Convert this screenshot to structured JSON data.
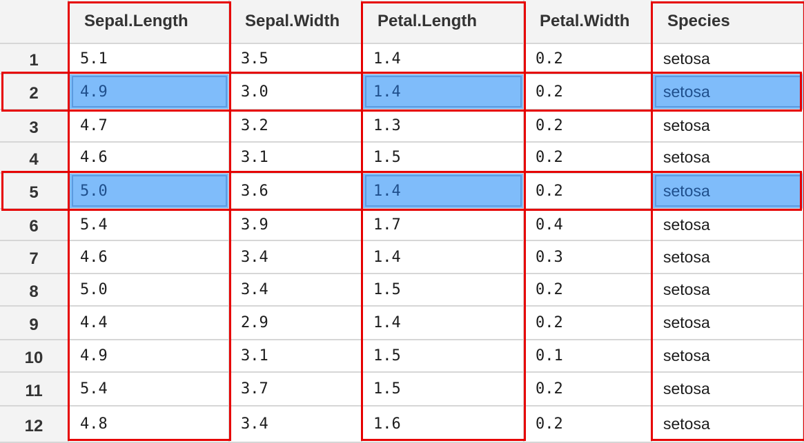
{
  "table": {
    "columns": [
      "Sepal.Length",
      "Sepal.Width",
      "Petal.Length",
      "Petal.Width",
      "Species"
    ],
    "rows": [
      {
        "id": "1",
        "cells": [
          "5.1",
          "3.5",
          "1.4",
          "0.2",
          "setosa"
        ]
      },
      {
        "id": "2",
        "cells": [
          "4.9",
          "3.0",
          "1.4",
          "0.2",
          "setosa"
        ]
      },
      {
        "id": "3",
        "cells": [
          "4.7",
          "3.2",
          "1.3",
          "0.2",
          "setosa"
        ]
      },
      {
        "id": "4",
        "cells": [
          "4.6",
          "3.1",
          "1.5",
          "0.2",
          "setosa"
        ]
      },
      {
        "id": "5",
        "cells": [
          "5.0",
          "3.6",
          "1.4",
          "0.2",
          "setosa"
        ]
      },
      {
        "id": "6",
        "cells": [
          "5.4",
          "3.9",
          "1.7",
          "0.4",
          "setosa"
        ]
      },
      {
        "id": "7",
        "cells": [
          "4.6",
          "3.4",
          "1.4",
          "0.3",
          "setosa"
        ]
      },
      {
        "id": "8",
        "cells": [
          "5.0",
          "3.4",
          "1.5",
          "0.2",
          "setosa"
        ]
      },
      {
        "id": "9",
        "cells": [
          "4.4",
          "2.9",
          "1.4",
          "0.2",
          "setosa"
        ]
      },
      {
        "id": "10",
        "cells": [
          "4.9",
          "3.1",
          "1.5",
          "0.1",
          "setosa"
        ]
      },
      {
        "id": "11",
        "cells": [
          "5.4",
          "3.7",
          "1.5",
          "0.2",
          "setosa"
        ]
      },
      {
        "id": "12",
        "cells": [
          "4.8",
          "3.4",
          "1.6",
          "0.2",
          "setosa"
        ]
      }
    ]
  },
  "selection": {
    "rows": [
      2,
      5
    ],
    "columns": [
      1,
      3,
      5
    ]
  },
  "colors": {
    "selected_fill": "#7fbcfa",
    "highlight_border": "#e60000",
    "header_bg": "#f3f3f3",
    "grid_line": "#d6d6d6"
  }
}
